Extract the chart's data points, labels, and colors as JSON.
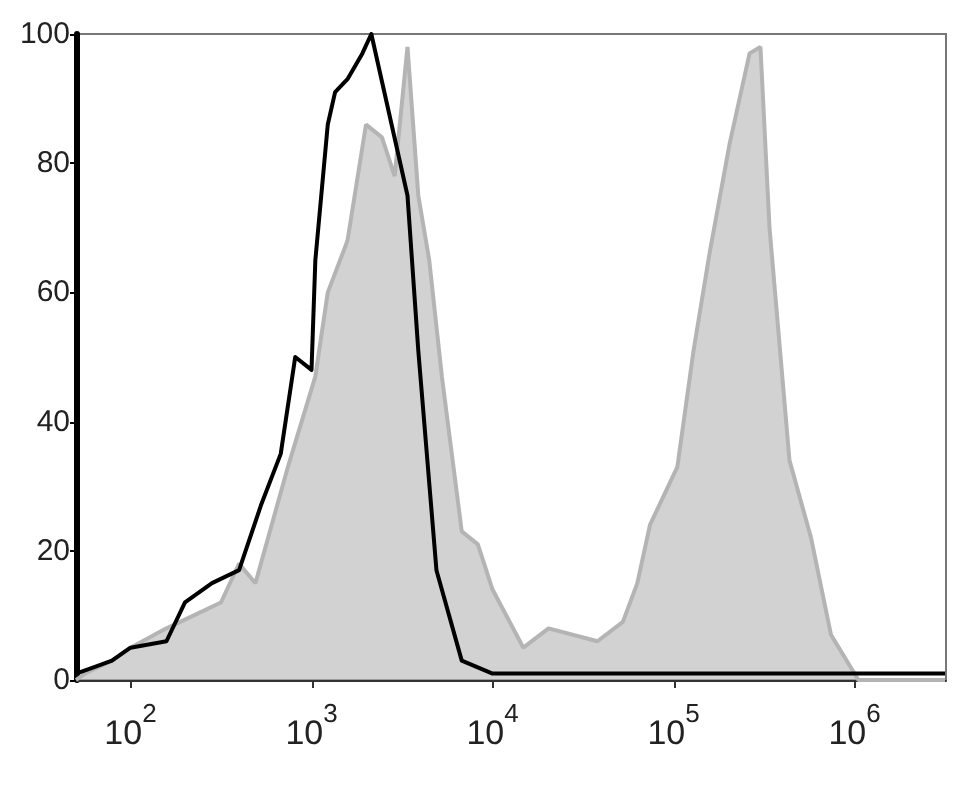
{
  "chart_data": {
    "type": "area",
    "log": "x",
    "grid": false,
    "marker": "none",
    "xlim": [
      50,
      3200000
    ],
    "xticks": [
      {
        "value": 100,
        "label": "10$^{2}$"
      },
      {
        "value": 1000,
        "label": "10$^{3}$"
      },
      {
        "value": 10000,
        "label": "10$^{4}$"
      },
      {
        "value": 100000,
        "label": "10$^{5}$"
      },
      {
        "value": 1000000,
        "label": "10$^{6}$"
      }
    ],
    "ylim": [
      0,
      100
    ],
    "yticks": [
      0,
      20,
      40,
      60,
      80,
      100
    ],
    "series": [
      {
        "type": "area",
        "color": "#b4b4b4",
        "x": [
          50,
          56,
          79,
          100,
          158,
          224,
          316,
          398,
          490,
          741,
          1050,
          1230,
          1580,
          2000,
          2450,
          2880,
          3390,
          3890,
          4470,
          5250,
          6760,
          8300,
          10000,
          14800,
          20400,
          38000,
          52500,
          63100,
          74100,
          105000,
          129000,
          158000,
          204000,
          263000,
          302000,
          339000,
          437000,
          575000,
          741000,
          1050000,
          3160000
        ],
        "values": [
          0,
          1,
          3,
          5,
          8,
          10,
          12,
          18,
          15,
          33,
          47,
          60,
          68,
          86,
          84,
          78,
          98,
          75,
          65,
          47,
          23,
          21,
          14,
          5,
          8,
          6,
          9,
          15,
          24,
          33,
          51,
          66,
          83,
          97,
          98,
          70,
          34,
          22,
          7,
          0,
          0
        ]
      },
      {
        "type": "line",
        "color": "#000000",
        "x": [
          50,
          63,
          79,
          100,
          158,
          200,
          282,
          398,
          525,
          676,
          813,
          1000,
          1050,
          1230,
          1350,
          1580,
          1910,
          2140,
          3390,
          3890,
          4900,
          6760,
          10000,
          100000,
          3160000
        ],
        "values": [
          1,
          2,
          3,
          5,
          6,
          12,
          15,
          17,
          27,
          35,
          50,
          48,
          65,
          86,
          91,
          93,
          97,
          100,
          75,
          51,
          17,
          3,
          1,
          1,
          1
        ]
      }
    ]
  }
}
